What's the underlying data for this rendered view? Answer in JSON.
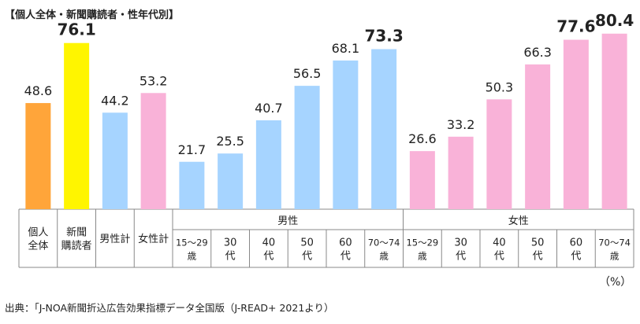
{
  "title": "【個人全体・新聞購読者・性年代別】",
  "unit": "（%）",
  "source": "出典：「J-NOA新聞折込広告効果指標データ全国版（J-READ+ 2021より）",
  "colors": {
    "overall": "#FFA53A",
    "subscriber": "#FFF500",
    "male": "#A6D4FF",
    "female": "#F9B2D8",
    "axis": "#888888"
  },
  "chart_data": {
    "type": "bar",
    "grid": false,
    "legend": "none",
    "ylim": [
      0,
      85
    ],
    "groups": [
      {
        "name": "",
        "categories": [
          {
            "label": [
              "個人",
              "全体"
            ],
            "value": 48.6,
            "color": "overall",
            "bold": false
          },
          {
            "label": [
              "新聞",
              "購読者"
            ],
            "value": 76.1,
            "color": "subscriber",
            "bold": true
          },
          {
            "label": [
              "男性計"
            ],
            "value": 44.2,
            "color": "male",
            "bold": false
          },
          {
            "label": [
              "女性計"
            ],
            "value": 53.2,
            "color": "female",
            "bold": false
          }
        ]
      },
      {
        "name": "男性",
        "categories": [
          {
            "label": [
              "15～29",
              "歳"
            ],
            "value": 21.7,
            "color": "male",
            "bold": false
          },
          {
            "label": [
              "30",
              "代"
            ],
            "value": 25.5,
            "color": "male",
            "bold": false
          },
          {
            "label": [
              "40",
              "代"
            ],
            "value": 40.7,
            "color": "male",
            "bold": false
          },
          {
            "label": [
              "50",
              "代"
            ],
            "value": 56.5,
            "color": "male",
            "bold": false
          },
          {
            "label": [
              "60",
              "代"
            ],
            "value": 68.1,
            "color": "male",
            "bold": false
          },
          {
            "label": [
              "70～74",
              "歳"
            ],
            "value": 73.3,
            "color": "male",
            "bold": true
          }
        ]
      },
      {
        "name": "女性",
        "categories": [
          {
            "label": [
              "15～29",
              "歳"
            ],
            "value": 26.6,
            "color": "female",
            "bold": false
          },
          {
            "label": [
              "30",
              "代"
            ],
            "value": 33.2,
            "color": "female",
            "bold": false
          },
          {
            "label": [
              "40",
              "代"
            ],
            "value": 50.3,
            "color": "female",
            "bold": false
          },
          {
            "label": [
              "50",
              "代"
            ],
            "value": 66.3,
            "color": "female",
            "bold": false
          },
          {
            "label": [
              "60",
              "代"
            ],
            "value": 77.6,
            "color": "female",
            "bold": true
          },
          {
            "label": [
              "70～74",
              "歳"
            ],
            "value": 80.4,
            "color": "female",
            "bold": true
          }
        ]
      }
    ]
  }
}
